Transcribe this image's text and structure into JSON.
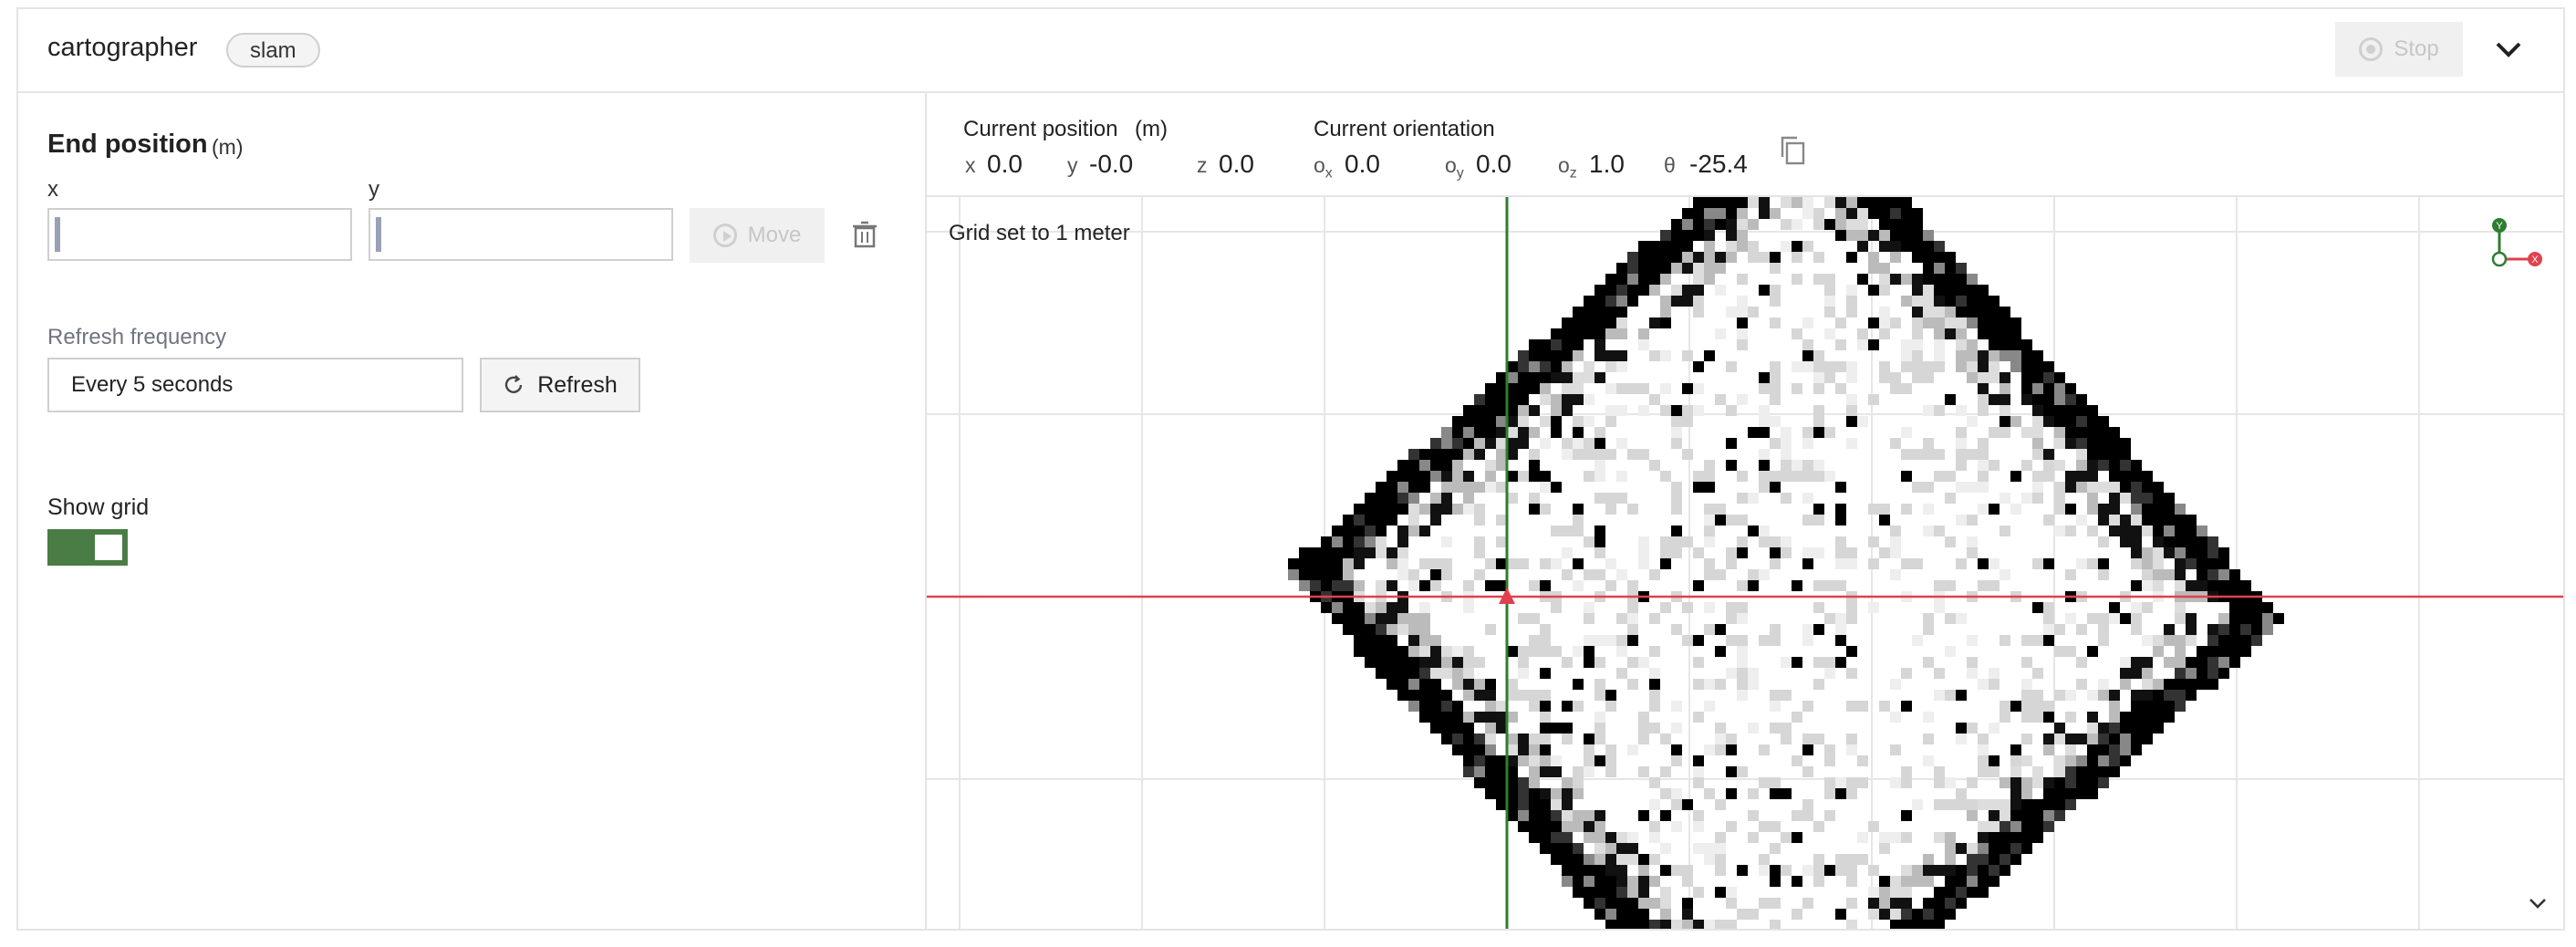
{
  "header": {
    "title": "cartographer",
    "badge": "slam",
    "stop_label": "Stop",
    "collapse_icon": "chevron-down-icon"
  },
  "end_position": {
    "title": "End position",
    "unit": "(m)",
    "x_label": "x",
    "x_value": "",
    "y_label": "y",
    "y_value": "",
    "move_label": "Move",
    "move_icon": "play-circle-icon",
    "delete_icon": "trash-icon"
  },
  "refresh": {
    "label": "Refresh frequency",
    "selected": "Every 5 seconds",
    "button_label": "Refresh",
    "button_icon": "refresh-icon"
  },
  "grid_toggle": {
    "label": "Show grid",
    "on": true,
    "color": "#4a7d45"
  },
  "pose": {
    "position_title": "Current position",
    "position_unit": "(m)",
    "x_key": "x",
    "x": "0.0",
    "y_key": "y",
    "y": "-0.0",
    "z_key": "z",
    "z": "0.0",
    "orientation_title": "Current orientation",
    "ox_key": "o",
    "ox_sub": "x",
    "ox": "0.0",
    "oy_key": "o",
    "oy_sub": "y",
    "oy": "0.0",
    "oz_key": "o",
    "oz_sub": "z",
    "oz": "1.0",
    "theta_key": "θ",
    "theta": "-25.4",
    "copy_icon": "copy-icon"
  },
  "map": {
    "grid_note": "Grid set to 1 meter",
    "axis_y_label": "Y",
    "axis_x_label": "X",
    "x_axis_color": "#e0414d",
    "y_axis_color": "#2e7d32",
    "robot_marker_color": "#e0414d",
    "expand_icon": "chevron-down-icon"
  }
}
